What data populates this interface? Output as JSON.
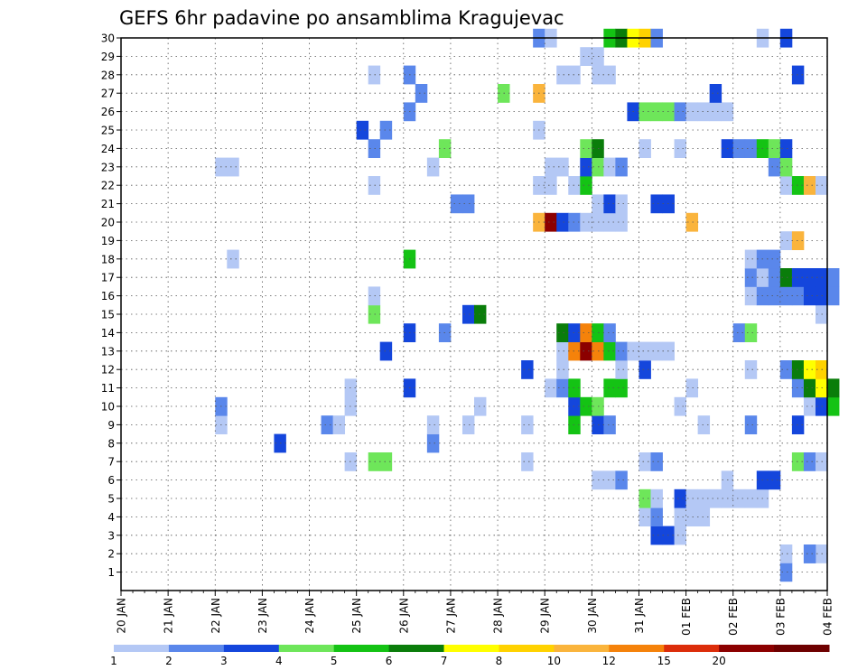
{
  "chart_data": {
    "type": "heatmap",
    "title": "GEFS 6hr padavine po ansamblima Kragujevac",
    "x_ticks": [
      "20 JAN",
      "21 JAN",
      "22 JAN",
      "23 JAN",
      "24 JAN",
      "25 JAN",
      "26 JAN",
      "27 JAN",
      "28 JAN",
      "29 JAN",
      "30 JAN",
      "31 JAN",
      "01 FEB",
      "02 FEB",
      "03 FEB",
      "04 FEB"
    ],
    "xlim_days": [
      0,
      15
    ],
    "ylim": [
      0,
      30
    ],
    "y_ticks": [
      1,
      2,
      3,
      4,
      5,
      6,
      7,
      8,
      9,
      10,
      11,
      12,
      13,
      14,
      15,
      16,
      17,
      18,
      19,
      20,
      21,
      22,
      23,
      24,
      25,
      26,
      27,
      28,
      29,
      30
    ],
    "levels": [
      "1",
      "2",
      "3",
      "4",
      "5",
      "6",
      "7",
      "8",
      "10",
      "12",
      "15",
      "20"
    ],
    "colors": [
      "#b4c8f5",
      "#5a87eb",
      "#1446dc",
      "#6ee65a",
      "#14c314",
      "#0a7d0a",
      "#ffff00",
      "#ffd200",
      "#fab43c",
      "#f5820a",
      "#dc2d0a",
      "#8c0000",
      "#6e0000"
    ],
    "cells": [
      [
        1,
        14.0,
        1
      ],
      [
        2,
        14.0,
        0
      ],
      [
        2,
        14.5,
        1
      ],
      [
        2,
        14.75,
        0
      ],
      [
        2,
        14.5,
        1
      ],
      [
        3,
        11.25,
        2
      ],
      [
        3,
        11.5,
        2
      ],
      [
        3,
        11.75,
        0
      ],
      [
        4,
        11.0,
        0
      ],
      [
        4,
        11.25,
        1
      ],
      [
        4,
        11.75,
        0
      ],
      [
        4,
        12.0,
        0
      ],
      [
        4,
        12.25,
        0
      ],
      [
        5,
        11.0,
        3
      ],
      [
        5,
        11.25,
        0
      ],
      [
        5,
        11.75,
        2
      ],
      [
        5,
        12.0,
        0
      ],
      [
        5,
        12.25,
        0
      ],
      [
        5,
        12.5,
        0
      ],
      [
        5,
        12.75,
        0
      ],
      [
        5,
        13.0,
        0
      ],
      [
        5,
        13.25,
        0
      ],
      [
        5,
        13.5,
        0
      ],
      [
        6,
        10.0,
        0
      ],
      [
        6,
        10.25,
        0
      ],
      [
        6,
        10.5,
        1
      ],
      [
        6,
        12.75,
        0
      ],
      [
        6,
        13.5,
        2
      ],
      [
        6,
        13.75,
        2
      ],
      [
        7,
        4.75,
        0
      ],
      [
        7,
        5.25,
        3
      ],
      [
        7,
        5.5,
        3
      ],
      [
        7,
        8.5,
        0
      ],
      [
        7,
        11.0,
        0
      ],
      [
        7,
        11.25,
        1
      ],
      [
        7,
        14.25,
        3
      ],
      [
        7,
        14.5,
        1
      ],
      [
        7,
        14.75,
        0
      ],
      [
        8,
        3.25,
        2
      ],
      [
        8,
        6.5,
        1
      ],
      [
        9,
        2.0,
        0
      ],
      [
        9,
        4.25,
        1
      ],
      [
        9,
        4.5,
        0
      ],
      [
        9,
        6.5,
        0
      ],
      [
        9,
        7.25,
        0
      ],
      [
        9,
        8.5,
        0
      ],
      [
        9,
        9.5,
        4
      ],
      [
        9,
        10.0,
        2
      ],
      [
        9,
        10.25,
        1
      ],
      [
        9,
        12.25,
        0
      ],
      [
        9,
        13.25,
        1
      ],
      [
        9,
        14.25,
        2
      ],
      [
        10,
        2.0,
        1
      ],
      [
        10,
        4.75,
        0
      ],
      [
        10,
        7.5,
        0
      ],
      [
        10,
        9.5,
        2
      ],
      [
        10,
        9.75,
        4
      ],
      [
        10,
        10.0,
        3
      ],
      [
        10,
        11.75,
        0
      ],
      [
        10,
        14.5,
        0
      ],
      [
        10,
        14.75,
        2
      ],
      [
        10,
        15.0,
        4
      ],
      [
        11,
        4.75,
        0
      ],
      [
        11,
        6.0,
        2
      ],
      [
        11,
        9.0,
        0
      ],
      [
        11,
        9.25,
        1
      ],
      [
        11,
        9.5,
        4
      ],
      [
        11,
        10.25,
        4
      ],
      [
        11,
        10.5,
        4
      ],
      [
        11,
        12.0,
        0
      ],
      [
        11,
        14.25,
        1
      ],
      [
        11,
        14.5,
        5
      ],
      [
        11,
        14.75,
        6
      ],
      [
        11,
        15.0,
        5
      ],
      [
        12,
        8.5,
        2
      ],
      [
        12,
        9.25,
        0
      ],
      [
        12,
        10.5,
        0
      ],
      [
        12,
        11.0,
        2
      ],
      [
        12,
        13.25,
        0
      ],
      [
        12,
        14.0,
        1
      ],
      [
        12,
        14.25,
        5
      ],
      [
        12,
        14.5,
        6
      ],
      [
        12,
        14.75,
        7
      ],
      [
        13,
        5.5,
        2
      ],
      [
        13,
        9.25,
        0
      ],
      [
        13,
        9.5,
        9
      ],
      [
        13,
        9.75,
        11
      ],
      [
        13,
        10.0,
        9
      ],
      [
        13,
        10.25,
        4
      ],
      [
        13,
        10.5,
        1
      ],
      [
        13,
        10.75,
        0
      ],
      [
        13,
        11.0,
        0
      ],
      [
        13,
        11.25,
        0
      ],
      [
        13,
        11.5,
        0
      ],
      [
        14,
        6.0,
        2
      ],
      [
        14,
        6.75,
        1
      ],
      [
        14,
        9.25,
        5
      ],
      [
        14,
        9.5,
        2
      ],
      [
        14,
        9.75,
        9
      ],
      [
        14,
        10.0,
        4
      ],
      [
        14,
        10.25,
        1
      ],
      [
        14,
        13.0,
        1
      ],
      [
        14,
        13.25,
        3
      ],
      [
        15,
        5.25,
        3
      ],
      [
        15,
        7.25,
        2
      ],
      [
        15,
        7.5,
        5
      ],
      [
        15,
        14.75,
        0
      ],
      [
        16,
        5.25,
        0
      ],
      [
        16,
        13.25,
        0
      ],
      [
        16,
        13.5,
        1
      ],
      [
        16,
        13.75,
        1
      ],
      [
        16,
        14.0,
        1
      ],
      [
        16,
        14.25,
        1
      ],
      [
        16,
        14.5,
        2
      ],
      [
        16,
        14.75,
        2
      ],
      [
        16,
        15.0,
        1
      ],
      [
        17,
        13.25,
        1
      ],
      [
        17,
        13.5,
        0
      ],
      [
        17,
        13.75,
        1
      ],
      [
        17,
        14.0,
        5
      ],
      [
        17,
        14.25,
        2
      ],
      [
        17,
        14.5,
        2
      ],
      [
        17,
        14.75,
        2
      ],
      [
        17,
        15.0,
        1
      ],
      [
        18,
        2.25,
        0
      ],
      [
        18,
        6.0,
        4
      ],
      [
        18,
        13.25,
        0
      ],
      [
        18,
        13.5,
        1
      ],
      [
        18,
        13.75,
        1
      ],
      [
        19,
        14.0,
        0
      ],
      [
        19,
        14.25,
        8
      ],
      [
        20,
        8.75,
        8
      ],
      [
        20,
        9.0,
        11
      ],
      [
        20,
        9.25,
        2
      ],
      [
        20,
        9.5,
        1
      ],
      [
        20,
        9.75,
        0
      ],
      [
        20,
        10.0,
        0
      ],
      [
        20,
        10.25,
        0
      ],
      [
        20,
        10.5,
        0
      ],
      [
        20,
        12.0,
        8
      ],
      [
        21,
        7.0,
        1
      ],
      [
        21,
        7.25,
        1
      ],
      [
        21,
        10.0,
        0
      ],
      [
        21,
        10.25,
        2
      ],
      [
        21,
        10.5,
        0
      ],
      [
        21,
        11.25,
        2
      ],
      [
        21,
        11.5,
        2
      ],
      [
        22,
        5.25,
        0
      ],
      [
        22,
        8.75,
        0
      ],
      [
        22,
        9.0,
        0
      ],
      [
        22,
        9.5,
        0
      ],
      [
        22,
        9.75,
        4
      ],
      [
        22,
        14.0,
        0
      ],
      [
        22,
        14.25,
        4
      ],
      [
        22,
        14.5,
        8
      ],
      [
        22,
        14.75,
        0
      ],
      [
        23,
        2.0,
        0
      ],
      [
        23,
        2.25,
        0
      ],
      [
        23,
        6.5,
        0
      ],
      [
        23,
        9.0,
        0
      ],
      [
        23,
        9.25,
        0
      ],
      [
        23,
        9.75,
        2
      ],
      [
        23,
        10.0,
        3
      ],
      [
        23,
        10.25,
        0
      ],
      [
        23,
        10.5,
        1
      ],
      [
        23,
        13.75,
        1
      ],
      [
        23,
        14.0,
        3
      ],
      [
        24,
        5.25,
        1
      ],
      [
        24,
        6.75,
        3
      ],
      [
        24,
        9.75,
        3
      ],
      [
        24,
        10.0,
        5
      ],
      [
        24,
        11.0,
        0
      ],
      [
        24,
        11.75,
        0
      ],
      [
        24,
        12.75,
        2
      ],
      [
        24,
        13.0,
        1
      ],
      [
        24,
        13.25,
        1
      ],
      [
        24,
        13.5,
        4
      ],
      [
        24,
        13.75,
        3
      ],
      [
        24,
        14.0,
        2
      ],
      [
        25,
        5.0,
        2
      ],
      [
        25,
        5.5,
        1
      ],
      [
        25,
        8.75,
        0
      ],
      [
        26,
        6.0,
        1
      ],
      [
        26,
        10.75,
        2
      ],
      [
        26,
        11.0,
        3
      ],
      [
        26,
        11.25,
        3
      ],
      [
        26,
        11.5,
        3
      ],
      [
        26,
        11.75,
        1
      ],
      [
        26,
        12.0,
        0
      ],
      [
        26,
        12.25,
        0
      ],
      [
        26,
        12.5,
        0
      ],
      [
        26,
        12.75,
        0
      ],
      [
        27,
        6.25,
        1
      ],
      [
        27,
        8.0,
        3
      ],
      [
        27,
        8.75,
        8
      ],
      [
        27,
        12.5,
        2
      ],
      [
        28,
        5.25,
        0
      ],
      [
        28,
        6.0,
        1
      ],
      [
        28,
        9.25,
        0
      ],
      [
        28,
        9.5,
        0
      ],
      [
        28,
        10.0,
        0
      ],
      [
        28,
        10.25,
        0
      ],
      [
        28,
        14.25,
        2
      ],
      [
        29,
        9.75,
        0
      ],
      [
        29,
        10.0,
        0
      ],
      [
        30,
        8.75,
        1
      ],
      [
        30,
        9.0,
        0
      ],
      [
        30,
        10.25,
        4
      ],
      [
        30,
        10.5,
        5
      ],
      [
        30,
        10.75,
        6
      ],
      [
        30,
        11.0,
        7
      ],
      [
        30,
        11.25,
        1
      ],
      [
        30,
        13.5,
        0
      ],
      [
        30,
        14.0,
        2
      ]
    ]
  }
}
